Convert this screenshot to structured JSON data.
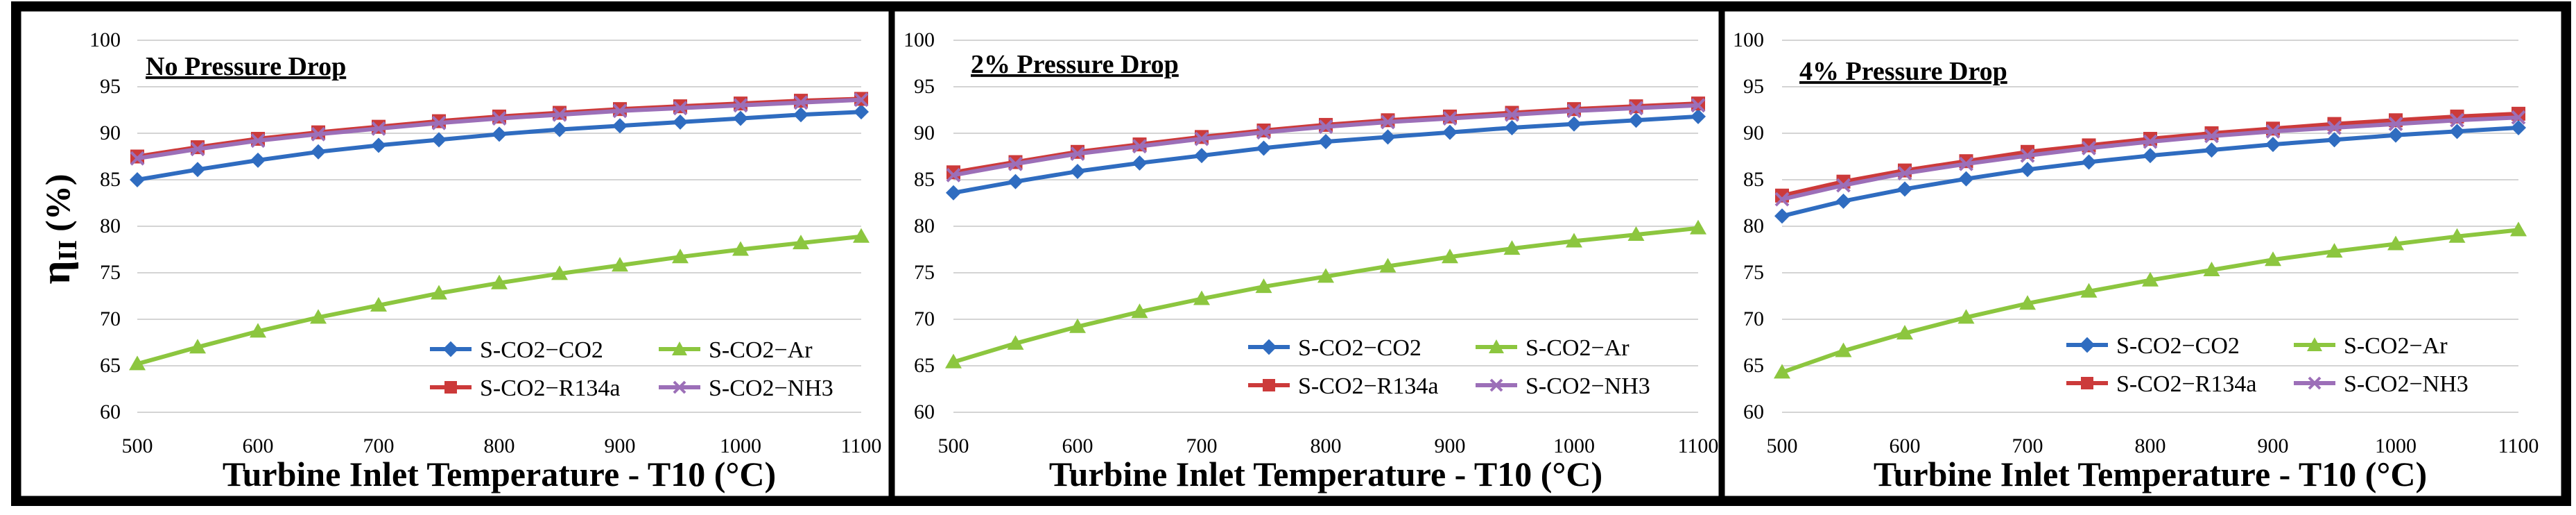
{
  "y_label": {
    "symbol": "η",
    "subscript": "II",
    "unit": "(%)"
  },
  "colors": {
    "co2": "#2f6cc0",
    "ar": "#8cc63f",
    "r134a": "#cc3a3a",
    "nh3": "#9c6fb8",
    "grid": "#d4d4d4",
    "frame": "#000000"
  },
  "chart_data": [
    {
      "type": "line",
      "title": "No Pressure Drop",
      "xlabel": "Turbine Inlet Temperature - T10 (°C)",
      "ylabel": "ηII (%)",
      "xlim": [
        500,
        1100
      ],
      "ylim": [
        60,
        100
      ],
      "x": [
        500,
        550,
        600,
        650,
        700,
        750,
        800,
        850,
        900,
        950,
        1000,
        1050,
        1100
      ],
      "xticks": [
        500,
        600,
        700,
        800,
        900,
        1000,
        1100
      ],
      "yticks": [
        60,
        65,
        70,
        75,
        80,
        85,
        90,
        95,
        100
      ],
      "series": [
        {
          "key": "co2",
          "name": "S-CO2−CO2",
          "marker": "diamond",
          "values": [
            85.0,
            86.1,
            87.1,
            88.0,
            88.7,
            89.3,
            89.9,
            90.4,
            90.8,
            91.2,
            91.6,
            92.0,
            92.3
          ]
        },
        {
          "key": "ar",
          "name": "S-CO2−Ar",
          "marker": "triangle",
          "values": [
            65.2,
            67.0,
            68.7,
            70.2,
            71.5,
            72.8,
            73.9,
            74.9,
            75.8,
            76.7,
            77.5,
            78.2,
            78.9
          ]
        },
        {
          "key": "r134a",
          "name": "S-CO2−R134a",
          "marker": "square",
          "values": [
            87.5,
            88.5,
            89.4,
            90.1,
            90.7,
            91.3,
            91.8,
            92.2,
            92.6,
            92.9,
            93.2,
            93.5,
            93.7
          ]
        },
        {
          "key": "nh3",
          "name": "S-CO2−NH3",
          "marker": "x",
          "values": [
            87.3,
            88.3,
            89.2,
            89.9,
            90.5,
            91.1,
            91.6,
            92.0,
            92.4,
            92.7,
            93.0,
            93.3,
            93.6
          ]
        }
      ]
    },
    {
      "type": "line",
      "title": "2% Pressure Drop",
      "xlabel": "Turbine Inlet Temperature - T10 (°C)",
      "ylabel": "ηII (%)",
      "xlim": [
        500,
        1100
      ],
      "ylim": [
        60,
        100
      ],
      "x": [
        500,
        550,
        600,
        650,
        700,
        750,
        800,
        850,
        900,
        950,
        1000,
        1050,
        1100
      ],
      "xticks": [
        500,
        600,
        700,
        800,
        900,
        1000,
        1100
      ],
      "yticks": [
        60,
        65,
        70,
        75,
        80,
        85,
        90,
        95,
        100
      ],
      "series": [
        {
          "key": "co2",
          "name": "S-CO2−CO2",
          "marker": "diamond",
          "values": [
            83.6,
            84.8,
            85.9,
            86.8,
            87.6,
            88.4,
            89.1,
            89.6,
            90.1,
            90.6,
            91.0,
            91.4,
            91.8
          ]
        },
        {
          "key": "ar",
          "name": "S-CO2−Ar",
          "marker": "triangle",
          "values": [
            65.4,
            67.4,
            69.2,
            70.8,
            72.2,
            73.5,
            74.6,
            75.7,
            76.7,
            77.6,
            78.4,
            79.1,
            79.8
          ]
        },
        {
          "key": "r134a",
          "name": "S-CO2−R134a",
          "marker": "square",
          "values": [
            85.8,
            86.9,
            88.0,
            88.8,
            89.6,
            90.3,
            90.9,
            91.4,
            91.8,
            92.2,
            92.6,
            92.9,
            93.2
          ]
        },
        {
          "key": "nh3",
          "name": "S-CO2−NH3",
          "marker": "x",
          "values": [
            85.5,
            86.7,
            87.8,
            88.6,
            89.4,
            90.1,
            90.7,
            91.2,
            91.6,
            92.0,
            92.4,
            92.7,
            93.0
          ]
        }
      ]
    },
    {
      "type": "line",
      "title": "4% Pressure Drop",
      "xlabel": "Turbine Inlet Temperature - T10 (°C)",
      "ylabel": "ηII (%)",
      "xlim": [
        500,
        1100
      ],
      "ylim": [
        60,
        100
      ],
      "x": [
        500,
        550,
        600,
        650,
        700,
        750,
        800,
        850,
        900,
        950,
        1000,
        1050,
        1100
      ],
      "xticks": [
        500,
        600,
        700,
        800,
        900,
        1000,
        1100
      ],
      "yticks": [
        60,
        65,
        70,
        75,
        80,
        85,
        90,
        95,
        100
      ],
      "series": [
        {
          "key": "co2",
          "name": "S-CO2−CO2",
          "marker": "diamond",
          "values": [
            81.1,
            82.7,
            84.0,
            85.1,
            86.1,
            86.9,
            87.6,
            88.2,
            88.8,
            89.3,
            89.8,
            90.2,
            90.6
          ]
        },
        {
          "key": "ar",
          "name": "S-CO2−Ar",
          "marker": "triangle",
          "values": [
            64.3,
            66.6,
            68.5,
            70.2,
            71.7,
            73.0,
            74.2,
            75.3,
            76.4,
            77.3,
            78.1,
            78.9,
            79.6
          ]
        },
        {
          "key": "r134a",
          "name": "S-CO2−R134a",
          "marker": "square",
          "values": [
            83.3,
            84.8,
            86.0,
            87.0,
            88.0,
            88.7,
            89.4,
            90.0,
            90.5,
            91.0,
            91.4,
            91.8,
            92.1
          ]
        },
        {
          "key": "nh3",
          "name": "S-CO2−NH3",
          "marker": "x",
          "values": [
            82.9,
            84.4,
            85.7,
            86.7,
            87.6,
            88.4,
            89.1,
            89.7,
            90.2,
            90.6,
            91.0,
            91.4,
            91.7
          ]
        }
      ]
    }
  ]
}
